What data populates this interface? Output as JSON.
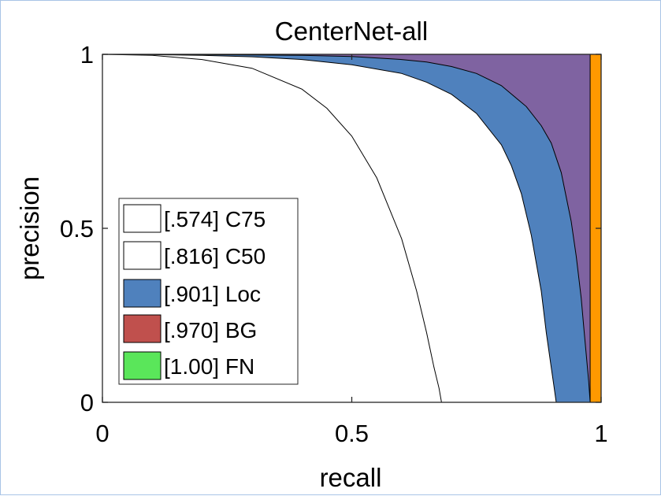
{
  "chart_data": {
    "type": "area",
    "title": "CenterNet-all",
    "xlabel": "recall",
    "ylabel": "precision",
    "xlim": [
      0,
      1
    ],
    "ylim": [
      0,
      1
    ],
    "xticks": [
      0,
      0.5,
      1
    ],
    "xtick_labels": [
      "0",
      "0.5",
      "1"
    ],
    "yticks": [
      0,
      0.5,
      1
    ],
    "ytick_labels": [
      "0",
      "0.5",
      "1"
    ],
    "grid": false,
    "legend_position": "lower-left",
    "series": [
      {
        "name": "[.574] C75",
        "color": "#ffffff",
        "x": [
          0.0,
          0.1,
          0.2,
          0.3,
          0.4,
          0.45,
          0.5,
          0.55,
          0.6,
          0.63,
          0.65,
          0.665,
          0.675,
          0.68
        ],
        "y": [
          1.0,
          0.997,
          0.985,
          0.96,
          0.9,
          0.845,
          0.765,
          0.645,
          0.47,
          0.32,
          0.2,
          0.1,
          0.04,
          0.0
        ]
      },
      {
        "name": "[.816] C50",
        "color": "#ffffff",
        "x": [
          0.0,
          0.1,
          0.2,
          0.3,
          0.4,
          0.5,
          0.6,
          0.65,
          0.7,
          0.75,
          0.8,
          0.82,
          0.84,
          0.86,
          0.88,
          0.89,
          0.9,
          0.905,
          0.91
        ],
        "y": [
          1.0,
          0.999,
          0.997,
          0.993,
          0.985,
          0.97,
          0.945,
          0.92,
          0.885,
          0.83,
          0.74,
          0.68,
          0.6,
          0.48,
          0.32,
          0.2,
          0.1,
          0.05,
          0.0
        ]
      },
      {
        "name": "[.901] Loc",
        "color": "#4f81bd",
        "x": [
          0.0,
          0.2,
          0.4,
          0.5,
          0.6,
          0.65,
          0.7,
          0.75,
          0.8,
          0.85,
          0.88,
          0.9,
          0.92,
          0.94,
          0.95,
          0.96,
          0.965,
          0.97,
          0.975,
          0.978
        ],
        "y": [
          1.0,
          0.999,
          0.997,
          0.994,
          0.985,
          0.978,
          0.965,
          0.945,
          0.91,
          0.85,
          0.795,
          0.745,
          0.66,
          0.52,
          0.42,
          0.3,
          0.22,
          0.14,
          0.06,
          0.0
        ]
      },
      {
        "name": "[.970] BG",
        "color": "#c0504d",
        "x": [
          0.0,
          0.978
        ],
        "y": [
          1.0,
          1.0
        ]
      },
      {
        "name": "[1.00] FN",
        "color": "#5ae65a",
        "x": [
          0.0,
          1.0
        ],
        "y": [
          1.0,
          1.0
        ]
      }
    ],
    "unlabeled_regions": [
      {
        "color": "#7f63a1",
        "description": "between Loc curve and precision 1 up to recall 0.978"
      },
      {
        "color": "#ff9900",
        "description": "recall 0.978 to 1 at full precision"
      }
    ]
  }
}
